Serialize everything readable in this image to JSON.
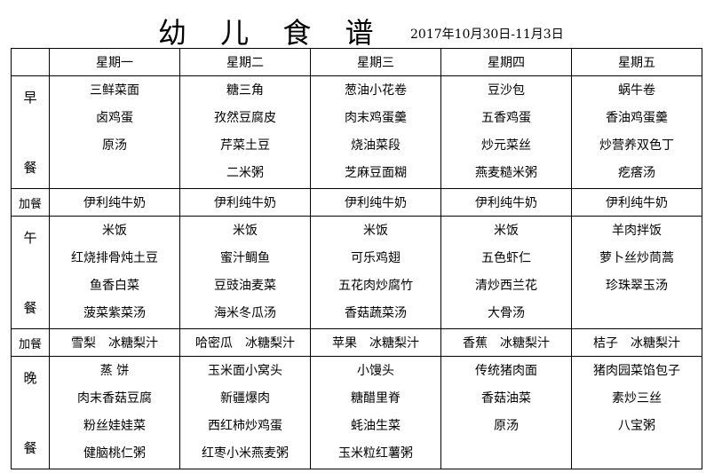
{
  "title": "幼 儿 食 谱",
  "date": "2017年10月30日-11月3日",
  "days": [
    "星期一",
    "星期二",
    "星期三",
    "星期四",
    "星期五"
  ],
  "meals": [
    {
      "label": [
        "早",
        "餐"
      ],
      "type": "meal",
      "cells": [
        [
          "三鲜菜面",
          "卤鸡蛋",
          "原汤"
        ],
        [
          "糖三角",
          "孜然豆腐皮",
          "芹菜土豆",
          "二米粥"
        ],
        [
          "葱油小花卷",
          "肉末鸡蛋羹",
          "烧油菜段",
          "芝麻豆面糊"
        ],
        [
          "豆沙包",
          "五香鸡蛋",
          "炒元菜丝",
          "燕麦糙米粥"
        ],
        [
          "蜗牛卷",
          "香油鸡蛋羹",
          "炒营养双色丁",
          "疙瘩汤"
        ]
      ]
    },
    {
      "label": [
        "加餐"
      ],
      "type": "snack",
      "cells": [
        [
          "伊利纯牛奶"
        ],
        [
          "伊利纯牛奶"
        ],
        [
          "伊利纯牛奶"
        ],
        [
          "伊利纯牛奶"
        ],
        [
          "伊利纯牛奶"
        ]
      ]
    },
    {
      "label": [
        "午",
        "餐"
      ],
      "type": "meal",
      "cells": [
        [
          "米饭",
          "红烧排骨炖土豆",
          "鱼香白菜",
          "菠菜紫菜汤"
        ],
        [
          "米饭",
          "蜜汁鲷鱼",
          "豆豉油麦菜",
          "海米冬瓜汤"
        ],
        [
          "米饭",
          "可乐鸡翅",
          "五花肉炒腐竹",
          "香菇蔬菜汤"
        ],
        [
          "米饭",
          "五色虾仁",
          "清炒西兰花",
          "大骨汤"
        ],
        [
          "羊肉拌饭",
          "萝卜丝炒茼蒿",
          "珍珠翠玉汤"
        ]
      ]
    },
    {
      "label": [
        "加餐"
      ],
      "type": "snack",
      "cells": [
        [
          "雪梨　冰糖梨汁"
        ],
        [
          "哈密瓜　冰糖梨汁"
        ],
        [
          "苹果　冰糖梨汁"
        ],
        [
          "香蕉　冰糖梨汁"
        ],
        [
          "桔子　冰糖梨汁"
        ]
      ]
    },
    {
      "label": [
        "晚",
        "餐"
      ],
      "type": "meal",
      "cells": [
        [
          "蒸 饼",
          "肉末香菇豆腐",
          "粉丝娃娃菜",
          "健脑桃仁粥"
        ],
        [
          "玉米面小窝头",
          "新疆爆肉",
          "西红柿炒鸡蛋",
          "红枣小米燕麦粥"
        ],
        [
          "小馒头",
          "糖醋里脊",
          "蚝油生菜",
          "玉米粒红薯粥"
        ],
        [
          "传统猪肉面",
          "香菇油菜",
          "原汤"
        ],
        [
          "猪肉园菜馅包子",
          "素炒三丝",
          "八宝粥"
        ]
      ]
    }
  ]
}
